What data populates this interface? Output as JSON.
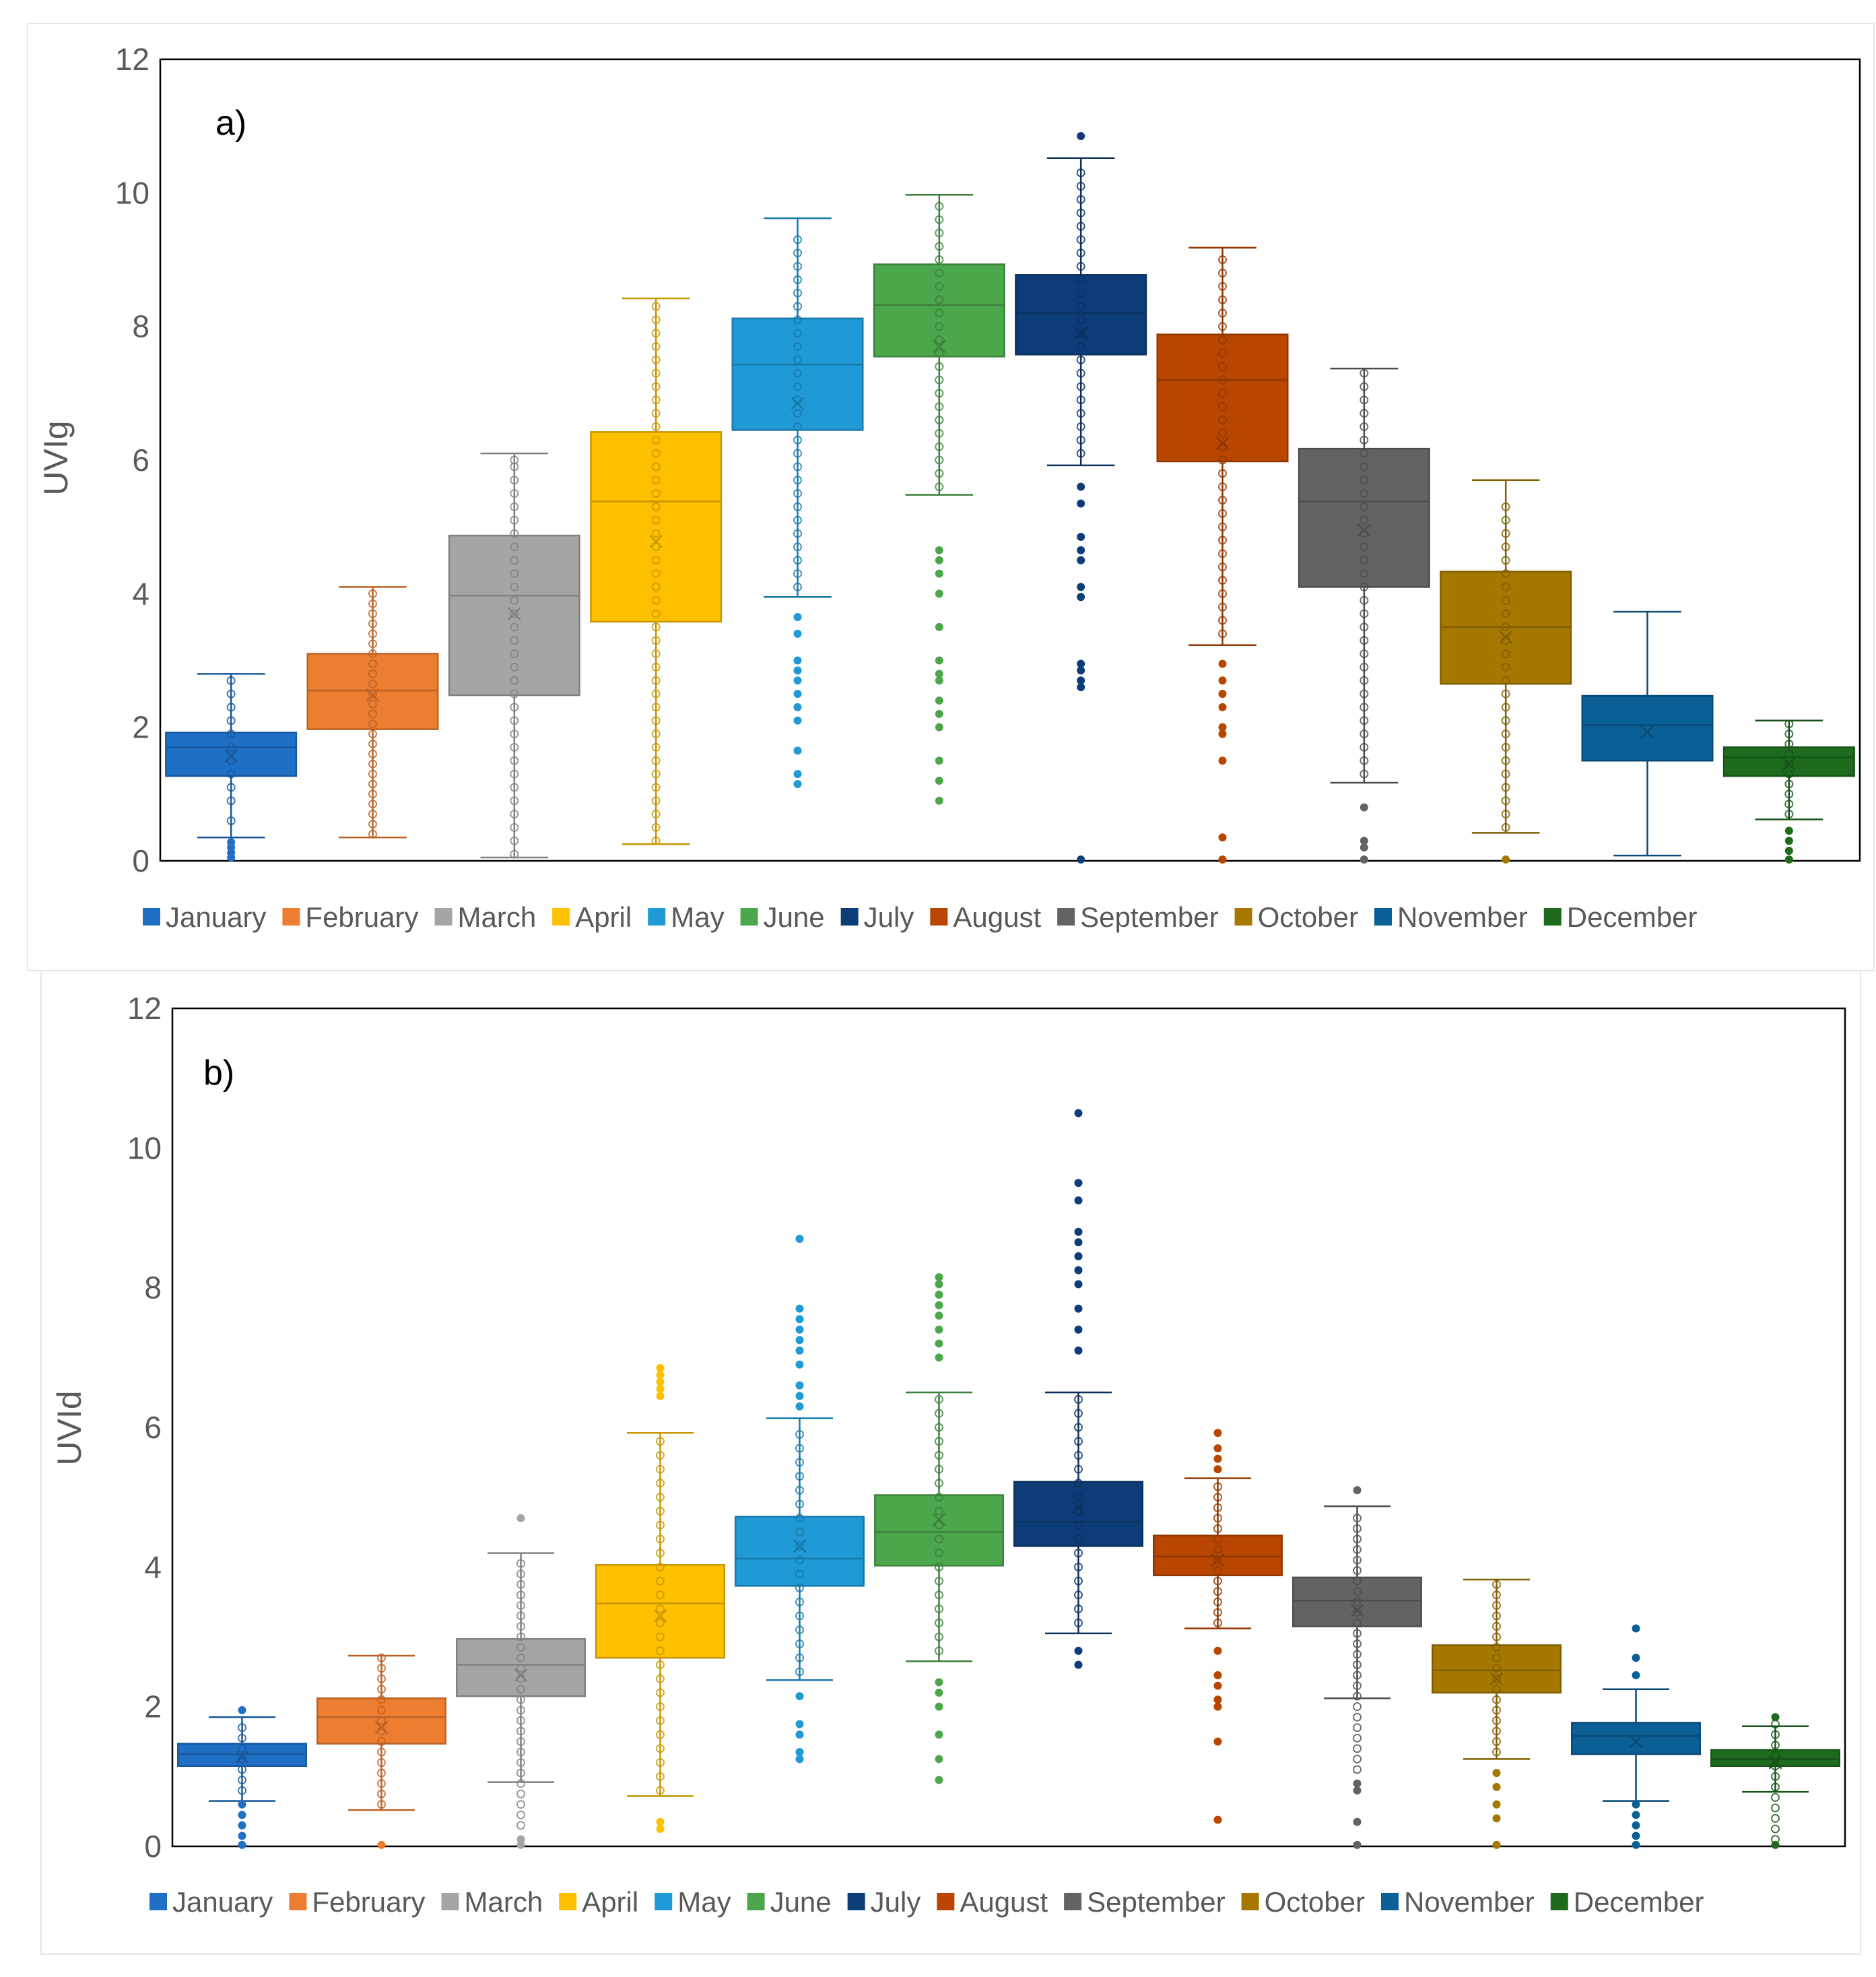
{
  "chart_data": [
    {
      "type": "box",
      "panel_label": "a)",
      "ylabel": "UVIg",
      "ylim": [
        0,
        12
      ],
      "yticks": [
        0,
        2,
        4,
        6,
        8,
        10,
        12
      ],
      "legend": {
        "placement": "bottom"
      },
      "categories": [
        "January",
        "February",
        "March",
        "April",
        "May",
        "June",
        "July",
        "August",
        "September",
        "October",
        "November",
        "December"
      ],
      "colors": [
        "#1f6fc5",
        "#ed7d31",
        "#a5a5a5",
        "#ffc000",
        "#1f9ad6",
        "#4ca64c",
        "#0d3d79",
        "#b84600",
        "#636363",
        "#a67800",
        "#0a5f96",
        "#1e6b1e"
      ],
      "boxes": [
        {
          "month": "January",
          "min": 0.35,
          "q1": 1.27,
          "median": 1.7,
          "q3": 1.92,
          "max": 2.8,
          "mean": 1.57,
          "outliers": [
            0.05,
            0.12,
            0.2,
            0.28
          ],
          "points": [
            0.6,
            0.9,
            1.1,
            1.3,
            1.5,
            1.7,
            1.9,
            2.1,
            2.3,
            2.5,
            2.7
          ]
        },
        {
          "month": "February",
          "min": 0.35,
          "q1": 1.97,
          "median": 2.55,
          "q3": 3.1,
          "max": 4.1,
          "mean": 2.48,
          "outliers": [],
          "points": [
            0.4,
            0.55,
            0.7,
            0.85,
            1.0,
            1.15,
            1.3,
            1.45,
            1.6,
            1.75,
            1.9,
            2.05,
            2.2,
            2.35,
            2.5,
            2.65,
            2.8,
            2.95,
            3.1,
            3.25,
            3.4,
            3.55,
            3.7,
            3.85,
            4.0
          ]
        },
        {
          "month": "March",
          "min": 0.05,
          "q1": 2.48,
          "median": 3.97,
          "q3": 4.87,
          "max": 6.1,
          "mean": 3.7,
          "outliers": [],
          "points": [
            0.1,
            0.3,
            0.5,
            0.7,
            0.9,
            1.1,
            1.3,
            1.5,
            1.7,
            1.9,
            2.1,
            2.3,
            2.5,
            2.7,
            2.9,
            3.1,
            3.3,
            3.5,
            3.7,
            3.9,
            4.1,
            4.3,
            4.5,
            4.7,
            4.9,
            5.1,
            5.3,
            5.5,
            5.7,
            5.9,
            6.0
          ]
        },
        {
          "month": "April",
          "min": 0.25,
          "q1": 3.58,
          "median": 5.38,
          "q3": 6.42,
          "max": 8.42,
          "mean": 4.78,
          "outliers": [],
          "points": [
            0.3,
            0.5,
            0.7,
            0.9,
            1.1,
            1.3,
            1.5,
            1.7,
            1.9,
            2.1,
            2.3,
            2.5,
            2.7,
            2.9,
            3.1,
            3.3,
            3.5,
            3.7,
            3.9,
            4.1,
            4.3,
            4.5,
            4.7,
            4.9,
            5.1,
            5.3,
            5.5,
            5.7,
            5.9,
            6.1,
            6.3,
            6.5,
            6.7,
            6.9,
            7.1,
            7.3,
            7.5,
            7.7,
            7.9,
            8.1,
            8.3
          ]
        },
        {
          "month": "May",
          "min": 3.95,
          "q1": 6.45,
          "median": 7.43,
          "q3": 8.12,
          "max": 9.62,
          "mean": 6.85,
          "outliers": [
            1.15,
            1.3,
            1.65,
            2.1,
            2.3,
            2.5,
            2.7,
            2.85,
            3.0,
            3.4,
            3.65
          ],
          "points": [
            4.1,
            4.3,
            4.5,
            4.7,
            4.9,
            5.1,
            5.3,
            5.5,
            5.7,
            5.9,
            6.1,
            6.3,
            6.5,
            6.7,
            6.9,
            7.1,
            7.3,
            7.5,
            7.7,
            7.9,
            8.1,
            8.3,
            8.5,
            8.7,
            8.9,
            9.1,
            9.3
          ]
        },
        {
          "month": "June",
          "min": 5.48,
          "q1": 7.55,
          "median": 8.32,
          "q3": 8.93,
          "max": 9.97,
          "mean": 7.7,
          "outliers": [
            0.9,
            1.2,
            1.5,
            2.0,
            2.2,
            2.4,
            2.7,
            2.8,
            3.0,
            3.5,
            4.0,
            4.3,
            4.5,
            4.65
          ],
          "points": [
            5.6,
            5.8,
            6.0,
            6.2,
            6.4,
            6.6,
            6.8,
            7.0,
            7.2,
            7.4,
            7.6,
            7.8,
            8.0,
            8.2,
            8.4,
            8.6,
            8.8,
            9.0,
            9.2,
            9.4,
            9.6,
            9.8
          ]
        },
        {
          "month": "July",
          "min": 5.92,
          "q1": 7.58,
          "median": 8.2,
          "q3": 8.77,
          "max": 10.52,
          "mean": 7.9,
          "outliers": [
            0.02,
            2.6,
            2.7,
            2.85,
            2.95,
            3.95,
            4.1,
            4.5,
            4.65,
            4.85,
            5.35,
            5.6,
            10.85
          ],
          "points": [
            6.1,
            6.3,
            6.5,
            6.7,
            6.9,
            7.1,
            7.3,
            7.5,
            7.7,
            7.9,
            8.1,
            8.3,
            8.5,
            8.7,
            8.9,
            9.1,
            9.3,
            9.5,
            9.7,
            9.9,
            10.1,
            10.3
          ]
        },
        {
          "month": "August",
          "min": 3.23,
          "q1": 5.98,
          "median": 7.2,
          "q3": 7.88,
          "max": 9.18,
          "mean": 6.25,
          "outliers": [
            0.02,
            0.35,
            1.5,
            1.9,
            2.0,
            2.3,
            2.5,
            2.7,
            2.95
          ],
          "points": [
            3.4,
            3.6,
            3.8,
            4.0,
            4.2,
            4.4,
            4.6,
            4.8,
            5.0,
            5.2,
            5.4,
            5.6,
            5.8,
            6.0,
            6.2,
            6.4,
            6.6,
            6.8,
            7.0,
            7.2,
            7.4,
            7.6,
            7.8,
            8.0,
            8.2,
            8.4,
            8.6,
            8.8,
            9.0
          ]
        },
        {
          "month": "September",
          "min": 1.17,
          "q1": 4.1,
          "median": 5.38,
          "q3": 6.17,
          "max": 7.37,
          "mean": 4.95,
          "outliers": [
            0.02,
            0.2,
            0.3,
            0.8
          ],
          "points": [
            1.3,
            1.5,
            1.7,
            1.9,
            2.1,
            2.3,
            2.5,
            2.7,
            2.9,
            3.1,
            3.3,
            3.5,
            3.7,
            3.9,
            4.1,
            4.3,
            4.5,
            4.7,
            4.9,
            5.1,
            5.3,
            5.5,
            5.7,
            5.9,
            6.1,
            6.3,
            6.5,
            6.7,
            6.9,
            7.1,
            7.3
          ]
        },
        {
          "month": "October",
          "min": 0.42,
          "q1": 2.65,
          "median": 3.5,
          "q3": 4.33,
          "max": 5.7,
          "mean": 3.35,
          "outliers": [
            0.02
          ],
          "points": [
            0.5,
            0.7,
            0.9,
            1.1,
            1.3,
            1.5,
            1.7,
            1.9,
            2.1,
            2.3,
            2.5,
            2.7,
            2.9,
            3.1,
            3.3,
            3.5,
            3.7,
            3.9,
            4.1,
            4.3,
            4.5,
            4.7,
            4.9,
            5.1,
            5.3
          ]
        },
        {
          "month": "November",
          "min": 0.08,
          "q1": 1.5,
          "median": 2.03,
          "q3": 2.47,
          "max": 3.73,
          "mean": 1.93,
          "outliers": [],
          "points": []
        },
        {
          "month": "December",
          "min": 0.62,
          "q1": 1.27,
          "median": 1.55,
          "q3": 1.7,
          "max": 2.1,
          "mean": 1.45,
          "outliers": [
            0.02,
            0.15,
            0.3,
            0.45
          ],
          "points": [
            0.7,
            0.85,
            1.0,
            1.15,
            1.3,
            1.45,
            1.6,
            1.75,
            1.9,
            2.05
          ]
        }
      ]
    },
    {
      "type": "box",
      "panel_label": "b)",
      "ylabel": "UVId",
      "ylim": [
        0,
        12
      ],
      "yticks": [
        0,
        2,
        4,
        6,
        8,
        10,
        12
      ],
      "legend": {
        "placement": "bottom"
      },
      "categories": [
        "January",
        "February",
        "March",
        "April",
        "May",
        "June",
        "July",
        "August",
        "September",
        "October",
        "November",
        "December"
      ],
      "colors": [
        "#1f6fc5",
        "#ed7d31",
        "#a5a5a5",
        "#ffc000",
        "#1f9ad6",
        "#4ca64c",
        "#0d3d79",
        "#b84600",
        "#636363",
        "#a67800",
        "#0a5f96",
        "#1e6b1e"
      ],
      "boxes": [
        {
          "month": "January",
          "min": 0.65,
          "q1": 1.15,
          "median": 1.32,
          "q3": 1.47,
          "max": 1.85,
          "mean": 1.28,
          "outliers": [
            0.02,
            0.15,
            0.3,
            0.45,
            0.6,
            1.95
          ],
          "points": [
            0.8,
            0.95,
            1.1,
            1.25,
            1.4,
            1.55,
            1.7
          ]
        },
        {
          "month": "February",
          "min": 0.52,
          "q1": 1.47,
          "median": 1.85,
          "q3": 2.12,
          "max": 2.73,
          "mean": 1.7,
          "outliers": [
            0.02
          ],
          "points": [
            0.6,
            0.75,
            0.9,
            1.05,
            1.2,
            1.35,
            1.5,
            1.65,
            1.8,
            1.95,
            2.1,
            2.25,
            2.4,
            2.55,
            2.7
          ]
        },
        {
          "month": "March",
          "min": 0.92,
          "q1": 2.15,
          "median": 2.6,
          "q3": 2.97,
          "max": 4.2,
          "mean": 2.45,
          "outliers": [
            0.02,
            0.1,
            4.7
          ],
          "points": [
            0.3,
            0.45,
            0.6,
            0.75,
            0.9,
            1.05,
            1.2,
            1.35,
            1.5,
            1.65,
            1.8,
            1.95,
            2.1,
            2.25,
            2.4,
            2.55,
            2.7,
            2.85,
            3.0,
            3.15,
            3.3,
            3.45,
            3.6,
            3.75,
            3.9,
            4.05
          ]
        },
        {
          "month": "April",
          "min": 0.72,
          "q1": 2.7,
          "median": 3.48,
          "q3": 4.03,
          "max": 5.92,
          "mean": 3.3,
          "outliers": [
            0.25,
            0.35,
            6.45,
            6.55,
            6.65,
            6.75,
            6.85
          ],
          "points": [
            0.8,
            1.0,
            1.2,
            1.4,
            1.6,
            1.8,
            2.0,
            2.2,
            2.4,
            2.6,
            2.8,
            3.0,
            3.2,
            3.4,
            3.6,
            3.8,
            4.0,
            4.2,
            4.4,
            4.6,
            4.8,
            5.0,
            5.2,
            5.4,
            5.6,
            5.8
          ]
        },
        {
          "month": "May",
          "min": 2.38,
          "q1": 3.73,
          "median": 4.12,
          "q3": 4.72,
          "max": 6.13,
          "mean": 4.3,
          "outliers": [
            1.25,
            1.35,
            1.6,
            1.75,
            2.15,
            6.3,
            6.45,
            6.6,
            6.9,
            7.1,
            7.25,
            7.4,
            7.55,
            7.7,
            8.7
          ],
          "points": [
            2.5,
            2.7,
            2.9,
            3.1,
            3.3,
            3.5,
            3.7,
            3.9,
            4.1,
            4.3,
            4.5,
            4.7,
            4.9,
            5.1,
            5.3,
            5.5,
            5.7,
            5.9
          ]
        },
        {
          "month": "June",
          "min": 2.65,
          "q1": 4.02,
          "median": 4.5,
          "q3": 5.03,
          "max": 6.5,
          "mean": 4.68,
          "outliers": [
            0.95,
            1.25,
            1.6,
            2.0,
            2.2,
            2.35,
            7.0,
            7.2,
            7.4,
            7.6,
            7.75,
            7.9,
            8.05,
            8.15
          ],
          "points": [
            2.8,
            3.0,
            3.2,
            3.4,
            3.6,
            3.8,
            4.0,
            4.2,
            4.4,
            4.6,
            4.8,
            5.0,
            5.2,
            5.4,
            5.6,
            5.8,
            6.0,
            6.2,
            6.4
          ]
        },
        {
          "month": "July",
          "min": 3.05,
          "q1": 4.3,
          "median": 4.65,
          "q3": 5.22,
          "max": 6.5,
          "mean": 4.85,
          "outliers": [
            2.6,
            2.8,
            7.1,
            7.4,
            7.7,
            8.05,
            8.25,
            8.45,
            8.65,
            8.8,
            9.25,
            9.5,
            10.5
          ],
          "points": [
            3.2,
            3.4,
            3.6,
            3.8,
            4.0,
            4.2,
            4.4,
            4.6,
            4.8,
            5.0,
            5.2,
            5.4,
            5.6,
            5.8,
            6.0,
            6.2,
            6.4
          ]
        },
        {
          "month": "August",
          "min": 3.12,
          "q1": 3.88,
          "median": 4.15,
          "q3": 4.45,
          "max": 5.27,
          "mean": 4.1,
          "outliers": [
            0.38,
            1.5,
            2.0,
            2.1,
            2.3,
            2.45,
            2.8,
            5.4,
            5.55,
            5.7,
            5.92
          ],
          "points": [
            3.2,
            3.35,
            3.5,
            3.65,
            3.8,
            3.95,
            4.1,
            4.25,
            4.4,
            4.55,
            4.7,
            4.85,
            5.0,
            5.15
          ]
        },
        {
          "month": "September",
          "min": 2.12,
          "q1": 3.15,
          "median": 3.52,
          "q3": 3.85,
          "max": 4.87,
          "mean": 3.38,
          "outliers": [
            0.02,
            0.35,
            0.8,
            0.9,
            5.1
          ],
          "points": [
            1.1,
            1.25,
            1.4,
            1.55,
            1.7,
            1.85,
            2.0,
            2.15,
            2.3,
            2.45,
            2.6,
            2.75,
            2.9,
            3.05,
            3.2,
            3.35,
            3.5,
            3.65,
            3.8,
            3.95,
            4.1,
            4.25,
            4.4,
            4.55,
            4.7
          ]
        },
        {
          "month": "October",
          "min": 1.25,
          "q1": 2.2,
          "median": 2.52,
          "q3": 2.88,
          "max": 3.82,
          "mean": 2.4,
          "outliers": [
            0.02,
            0.4,
            0.6,
            0.85,
            1.05
          ],
          "points": [
            1.35,
            1.5,
            1.65,
            1.8,
            1.95,
            2.1,
            2.25,
            2.4,
            2.55,
            2.7,
            2.85,
            3.0,
            3.15,
            3.3,
            3.45,
            3.6,
            3.75
          ]
        },
        {
          "month": "November",
          "min": 0.65,
          "q1": 1.32,
          "median": 1.58,
          "q3": 1.77,
          "max": 2.25,
          "mean": 1.5,
          "outliers": [
            0.02,
            0.15,
            0.3,
            0.45,
            0.6,
            2.45,
            2.7,
            3.12
          ],
          "points": []
        },
        {
          "month": "December",
          "min": 0.78,
          "q1": 1.15,
          "median": 1.25,
          "q3": 1.38,
          "max": 1.72,
          "mean": 1.2,
          "outliers": [
            0.02,
            1.85
          ],
          "points": [
            0.1,
            0.25,
            0.4,
            0.55,
            0.7,
            0.85,
            1.0,
            1.15,
            1.3,
            1.45,
            1.6,
            1.75
          ]
        }
      ]
    }
  ]
}
